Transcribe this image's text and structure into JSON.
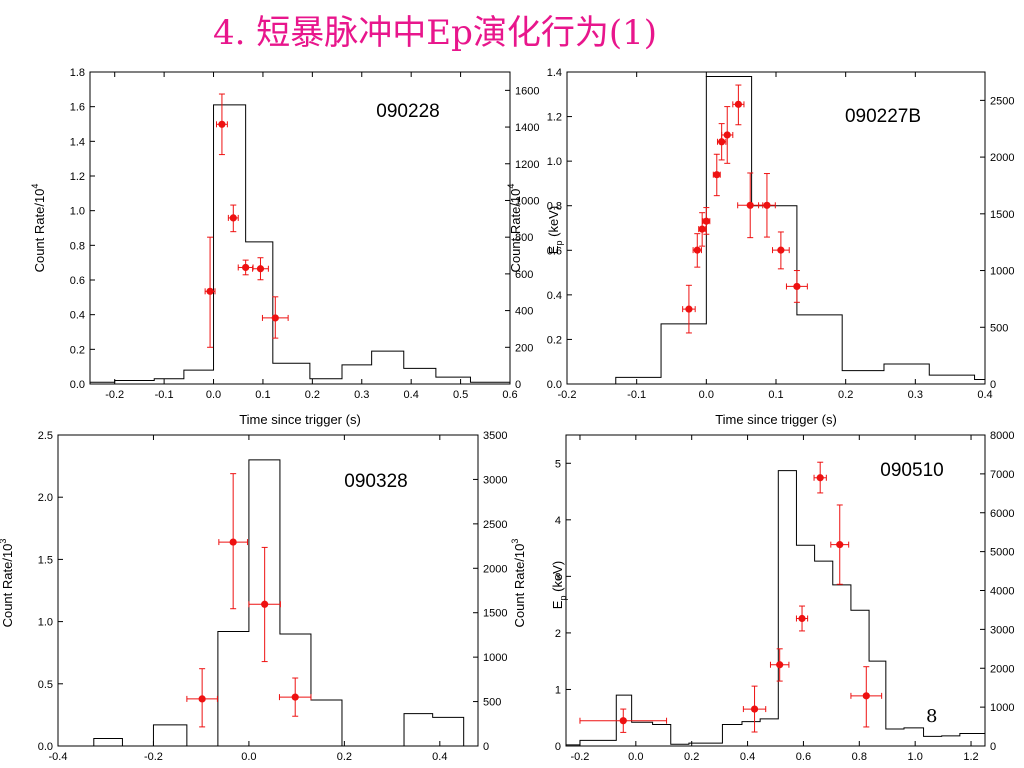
{
  "slide": {
    "title": "4. 短暴脉冲中Ep演化行为(1)",
    "page_number": "8",
    "title_color": "#e8168c",
    "hist_color": "#000000",
    "point_color": "#ee1111"
  },
  "chart_data": [
    {
      "type": "line",
      "title": "090228",
      "xlabel": "Time since trigger (s)",
      "ylabel_left": "Count Rate/10^4",
      "xlim": [
        -0.25,
        0.6
      ],
      "ylim_left": [
        0,
        1.8
      ],
      "ylim_right": [
        0,
        1700
      ],
      "x_ticks": [
        -0.2,
        -0.1,
        0.0,
        0.1,
        0.2,
        0.3,
        0.4,
        0.5,
        0.6
      ],
      "x_tick_labels": [
        "-0.2",
        "-0.1",
        "0.0",
        "0.1",
        "0.2",
        "0.3",
        "0.4",
        "0.5",
        "0.6"
      ],
      "y_left_ticks": [
        0,
        0.2,
        0.4,
        0.6,
        0.8,
        1.0,
        1.2,
        1.4,
        1.6,
        1.8
      ],
      "y_left_tick_labels": [
        "0.0",
        "0.2",
        "0.4",
        "0.6",
        "0.8",
        "1.0",
        "1.2",
        "1.4",
        "1.6",
        "1.8"
      ],
      "y_right_ticks": [
        0,
        200,
        400,
        600,
        800,
        1000,
        1200,
        1400,
        1600
      ],
      "y_right_tick_labels": [
        "0",
        "200",
        "400",
        "600",
        "800",
        "1000",
        "1200",
        "1400",
        "1600"
      ],
      "histogram": {
        "edges": [
          -0.25,
          -0.2,
          -0.16,
          -0.12,
          -0.06,
          0.0,
          0.065,
          0.12,
          0.195,
          0.26,
          0.32,
          0.385,
          0.45,
          0.52,
          0.58,
          0.6
        ],
        "values": [
          0.01,
          0.02,
          0.02,
          0.03,
          0.08,
          1.61,
          0.82,
          0.12,
          0.03,
          0.11,
          0.19,
          0.09,
          0.04,
          0.01,
          0.01
        ]
      },
      "points": [
        {
          "x": -0.007,
          "xerr": 0.01,
          "y": 505,
          "yerr_low": 305,
          "yerr_high": 295
        },
        {
          "x": 0.017,
          "xerr": 0.011,
          "y": 1415,
          "yerr_low": 165,
          "yerr_high": 165
        },
        {
          "x": 0.04,
          "xerr": 0.01,
          "y": 905,
          "yerr_low": 75,
          "yerr_high": 70
        },
        {
          "x": 0.065,
          "xerr": 0.015,
          "y": 635,
          "yerr_low": 40,
          "yerr_high": 40
        },
        {
          "x": 0.095,
          "xerr": 0.016,
          "y": 628,
          "yerr_low": 60,
          "yerr_high": 60
        },
        {
          "x": 0.125,
          "xerr": 0.026,
          "y": 360,
          "yerr_low": 110,
          "yerr_high": 115
        }
      ]
    },
    {
      "type": "line",
      "title": "090227B",
      "xlabel": "Time since trigger (s)",
      "ylabel_left": "Count Rate/10^4",
      "ylabel_right": "E_p (keV)",
      "xlim": [
        -0.2,
        0.4
      ],
      "ylim_left": [
        0,
        1.4
      ],
      "ylim_right": [
        0,
        2750
      ],
      "x_ticks": [
        -0.2,
        -0.1,
        0.0,
        0.1,
        0.2,
        0.3,
        0.4
      ],
      "x_tick_labels": [
        "-0.2",
        "-0.1",
        "0.0",
        "0.1",
        "0.2",
        "0.3",
        "0.4"
      ],
      "y_left_ticks": [
        0,
        0.2,
        0.4,
        0.6,
        0.8,
        1.0,
        1.2,
        1.4
      ],
      "y_left_tick_labels": [
        "0.0",
        "0.2",
        "0.4",
        "0.6",
        "0.8",
        "1.0",
        "1.2",
        "1.4"
      ],
      "y_right_ticks": [
        0,
        500,
        1000,
        1500,
        2000,
        2500
      ],
      "y_right_tick_labels": [
        "0",
        "500",
        "1000",
        "1500",
        "2000",
        "2500"
      ],
      "histogram": {
        "edges": [
          -0.2,
          -0.13,
          -0.065,
          0.0,
          0.065,
          0.13,
          0.195,
          0.255,
          0.32,
          0.385,
          0.4
        ],
        "values": [
          0.0,
          0.03,
          0.27,
          1.38,
          0.8,
          0.31,
          0.06,
          0.09,
          0.04,
          0.02
        ]
      },
      "points": [
        {
          "x": -0.025,
          "xerr": 0.009,
          "y": 660,
          "yerr_low": 210,
          "yerr_high": 210
        },
        {
          "x": -0.013,
          "xerr": 0.006,
          "y": 1180,
          "yerr_low": 150,
          "yerr_high": 145
        },
        {
          "x": -0.006,
          "xerr": 0.005,
          "y": 1365,
          "yerr_low": 150,
          "yerr_high": 145
        },
        {
          "x": 0.0,
          "xerr": 0.005,
          "y": 1435,
          "yerr_low": 115,
          "yerr_high": 120
        },
        {
          "x": 0.015,
          "xerr": 0.005,
          "y": 1845,
          "yerr_low": 185,
          "yerr_high": 180
        },
        {
          "x": 0.022,
          "xerr": 0.006,
          "y": 2135,
          "yerr_low": 160,
          "yerr_high": 160
        },
        {
          "x": 0.03,
          "xerr": 0.008,
          "y": 2195,
          "yerr_low": 250,
          "yerr_high": 250
        },
        {
          "x": 0.046,
          "xerr": 0.008,
          "y": 2465,
          "yerr_low": 180,
          "yerr_high": 170
        },
        {
          "x": 0.063,
          "xerr": 0.018,
          "y": 1575,
          "yerr_low": 285,
          "yerr_high": 285
        },
        {
          "x": 0.087,
          "xerr": 0.012,
          "y": 1575,
          "yerr_low": 280,
          "yerr_high": 280
        },
        {
          "x": 0.107,
          "xerr": 0.012,
          "y": 1180,
          "yerr_low": 165,
          "yerr_high": 160
        },
        {
          "x": 0.13,
          "xerr": 0.015,
          "y": 860,
          "yerr_low": 140,
          "yerr_high": 140
        }
      ]
    },
    {
      "type": "line",
      "title": "090328",
      "xlabel": "",
      "ylabel_left": "Count Rate/10^3",
      "xlim": [
        -0.4,
        0.48
      ],
      "ylim_left": [
        0,
        2.5
      ],
      "ylim_right": [
        0,
        3500
      ],
      "x_ticks": [
        -0.4,
        -0.2,
        0.0,
        0.2,
        0.4
      ],
      "x_tick_labels": [
        "-0.4",
        "-0.2",
        "0.0",
        "0.2",
        "0.4"
      ],
      "y_left_ticks": [
        0,
        0.5,
        1.0,
        1.5,
        2.0,
        2.5
      ],
      "y_left_tick_labels": [
        "0.0",
        "0.5",
        "1.0",
        "1.5",
        "2.0",
        "2.5"
      ],
      "y_right_ticks": [
        0,
        500,
        1000,
        1500,
        2000,
        2500,
        3000,
        3500
      ],
      "y_right_tick_labels": [
        "0",
        "500",
        "1000",
        "1500",
        "2000",
        "2500",
        "3000",
        "3500"
      ],
      "histogram": {
        "edges": [
          -0.4,
          -0.325,
          -0.265,
          -0.2,
          -0.13,
          -0.065,
          0.0,
          0.065,
          0.13,
          0.195,
          0.26,
          0.325,
          0.385,
          0.45,
          0.48
        ],
        "values": [
          0.0,
          0.06,
          0.0,
          0.17,
          0.0,
          0.92,
          2.3,
          0.9,
          0.37,
          0.0,
          0.0,
          0.26,
          0.23,
          0.0
        ]
      },
      "points": [
        {
          "x": -0.098,
          "xerr": 0.032,
          "y": 530,
          "yerr_low": 315,
          "yerr_high": 340
        },
        {
          "x": -0.033,
          "xerr": 0.03,
          "y": 2295,
          "yerr_low": 750,
          "yerr_high": 770
        },
        {
          "x": 0.033,
          "xerr": 0.033,
          "y": 1595,
          "yerr_low": 645,
          "yerr_high": 640
        },
        {
          "x": 0.097,
          "xerr": 0.033,
          "y": 550,
          "yerr_low": 215,
          "yerr_high": 215
        }
      ]
    },
    {
      "type": "line",
      "title": "090510",
      "xlabel": "",
      "ylabel_left": "Count Rate/10^3",
      "ylabel_right": "E_p (keV)",
      "xlim": [
        -0.25,
        1.25
      ],
      "ylim_left": [
        0,
        5.5
      ],
      "ylim_right": [
        0,
        8000
      ],
      "x_ticks": [
        -0.2,
        0.0,
        0.2,
        0.4,
        0.6,
        0.8,
        1.0,
        1.2
      ],
      "x_tick_labels": [
        "-0.2",
        "0.0",
        "0.2",
        "0.4",
        "0.6",
        "0.8",
        "1.0",
        "1.2"
      ],
      "y_left_ticks": [
        0,
        1,
        2,
        3,
        4,
        5
      ],
      "y_left_tick_labels": [
        "0",
        "1",
        "2",
        "3",
        "4",
        "5"
      ],
      "y_right_ticks": [
        0,
        1000,
        2000,
        3000,
        4000,
        5000,
        6000,
        7000,
        8000
      ],
      "y_right_tick_labels": [
        "0",
        "1000",
        "2000",
        "3000",
        "4000",
        "5000",
        "6000",
        "7000",
        "8000"
      ],
      "histogram": {
        "edges": [
          -0.25,
          -0.2,
          -0.07,
          -0.015,
          0.06,
          0.125,
          0.19,
          0.31,
          0.38,
          0.445,
          0.51,
          0.575,
          0.64,
          0.705,
          0.77,
          0.835,
          0.895,
          0.96,
          1.03,
          1.095,
          1.16,
          1.25
        ],
        "values": [
          0.02,
          0.1,
          0.9,
          0.42,
          0.38,
          0.03,
          0.05,
          0.38,
          0.43,
          0.48,
          4.87,
          3.55,
          3.27,
          2.85,
          2.4,
          1.5,
          0.3,
          0.32,
          0.17,
          0.18,
          0.22
        ]
      },
      "points": [
        {
          "x": -0.045,
          "xerr": 0.155,
          "y": 650,
          "yerr_low": 300,
          "yerr_high": 300
        },
        {
          "x": 0.425,
          "xerr": 0.04,
          "y": 950,
          "yerr_low": 590,
          "yerr_high": 590
        },
        {
          "x": 0.515,
          "xerr": 0.033,
          "y": 2090,
          "yerr_low": 420,
          "yerr_high": 410
        },
        {
          "x": 0.595,
          "xerr": 0.02,
          "y": 3280,
          "yerr_low": 320,
          "yerr_high": 320
        },
        {
          "x": 0.66,
          "xerr": 0.022,
          "y": 6900,
          "yerr_low": 390,
          "yerr_high": 400
        },
        {
          "x": 0.73,
          "xerr": 0.032,
          "y": 5180,
          "yerr_low": 1020,
          "yerr_high": 1020
        },
        {
          "x": 0.825,
          "xerr": 0.055,
          "y": 1290,
          "yerr_low": 800,
          "yerr_high": 750
        }
      ]
    }
  ]
}
